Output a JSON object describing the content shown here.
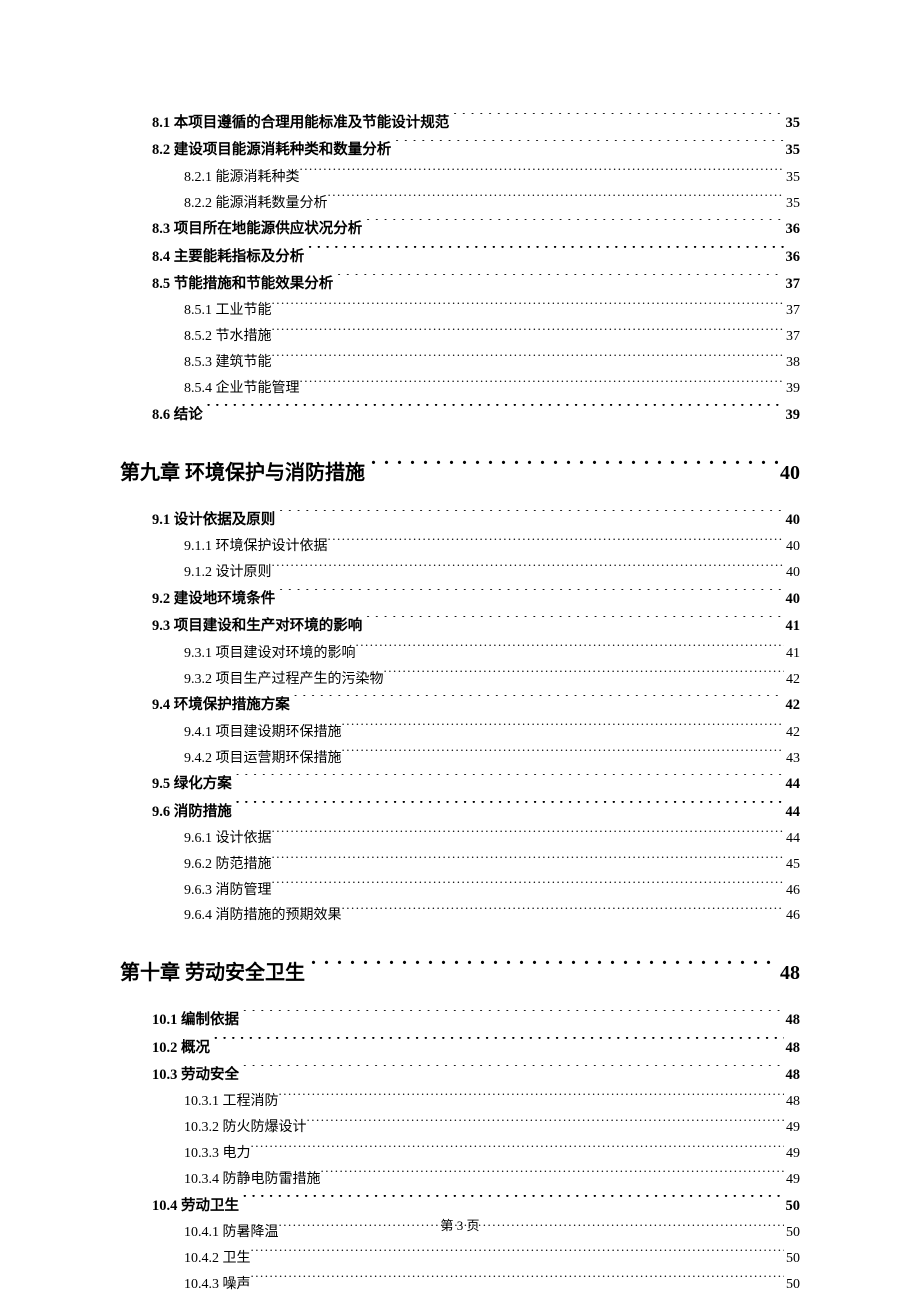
{
  "footer": "第 3 页",
  "entries": [
    {
      "level": "section",
      "label": "8.1 本项目遵循的合理用能标准及节能设计规范",
      "page": "35"
    },
    {
      "level": "section",
      "label": "8.2 建设项目能源消耗种类和数量分析",
      "page": "35"
    },
    {
      "level": "sub",
      "label": "8.2.1 能源消耗种类",
      "page": "35"
    },
    {
      "level": "sub",
      "label": "8.2.2 能源消耗数量分析",
      "page": "35"
    },
    {
      "level": "section",
      "label": "8.3 项目所在地能源供应状况分析",
      "page": "36"
    },
    {
      "level": "section",
      "label": "8.4 主要能耗指标及分析",
      "page": "36"
    },
    {
      "level": "section",
      "label": "8.5 节能措施和节能效果分析",
      "page": "37"
    },
    {
      "level": "sub",
      "label": "8.5.1 工业节能",
      "page": "37"
    },
    {
      "level": "sub",
      "label": "8.5.2 节水措施",
      "page": "37"
    },
    {
      "level": "sub",
      "label": "8.5.3 建筑节能",
      "page": "38"
    },
    {
      "level": "sub",
      "label": "8.5.4 企业节能管理",
      "page": "39"
    },
    {
      "level": "section",
      "label": "8.6 结论",
      "page": "39"
    },
    {
      "level": "chapter",
      "label": "第九章 环境保护与消防措施",
      "page": "40"
    },
    {
      "level": "section",
      "label": "9.1 设计依据及原则",
      "page": "40"
    },
    {
      "level": "sub",
      "label": "9.1.1 环境保护设计依据",
      "page": "40"
    },
    {
      "level": "sub",
      "label": "9.1.2 设计原则",
      "page": "40"
    },
    {
      "level": "section",
      "label": "9.2 建设地环境条件",
      "page": "40"
    },
    {
      "level": "section",
      "label": "9.3  项目建设和生产对环境的影响",
      "page": "41"
    },
    {
      "level": "sub",
      "label": "9.3.1  项目建设对环境的影响",
      "page": "41"
    },
    {
      "level": "sub",
      "label": "9.3.2  项目生产过程产生的污染物",
      "page": "42"
    },
    {
      "level": "section",
      "label": "9.4  环境保护措施方案",
      "page": "42"
    },
    {
      "level": "sub",
      "label": "9.4.1  项目建设期环保措施",
      "page": "42"
    },
    {
      "level": "sub",
      "label": "9.4.2  项目运营期环保措施",
      "page": "43"
    },
    {
      "level": "section",
      "label": "9.5 绿化方案",
      "page": "44"
    },
    {
      "level": "section",
      "label": "9.6 消防措施",
      "page": "44"
    },
    {
      "level": "sub",
      "label": "9.6.1 设计依据",
      "page": "44"
    },
    {
      "level": "sub",
      "label": "9.6.2 防范措施",
      "page": "45"
    },
    {
      "level": "sub",
      "label": "9.6.3 消防管理",
      "page": "46"
    },
    {
      "level": "sub",
      "label": "9.6.4 消防措施的预期效果",
      "page": "46"
    },
    {
      "level": "chapter",
      "label": "第十章 劳动安全卫生",
      "page": "48"
    },
    {
      "level": "section",
      "label": "10.1  编制依据",
      "page": "48"
    },
    {
      "level": "section",
      "label": "10.2 概况",
      "page": "48"
    },
    {
      "level": "section",
      "label": "10.3  劳动安全",
      "page": "48"
    },
    {
      "level": "sub",
      "label": "10.3.1 工程消防",
      "page": "48"
    },
    {
      "level": "sub",
      "label": "10.3.2 防火防爆设计",
      "page": "49"
    },
    {
      "level": "sub",
      "label": "10.3.3 电力",
      "page": "49"
    },
    {
      "level": "sub",
      "label": "10.3.4 防静电防雷措施",
      "page": "49"
    },
    {
      "level": "section",
      "label": "10.4 劳动卫生",
      "page": "50"
    },
    {
      "level": "sub",
      "label": "10.4.1 防暑降温",
      "page": "50"
    },
    {
      "level": "sub",
      "label": "10.4.2 卫生",
      "page": "50"
    },
    {
      "level": "sub",
      "label": "10.4.3 噪声",
      "page": "50"
    }
  ]
}
